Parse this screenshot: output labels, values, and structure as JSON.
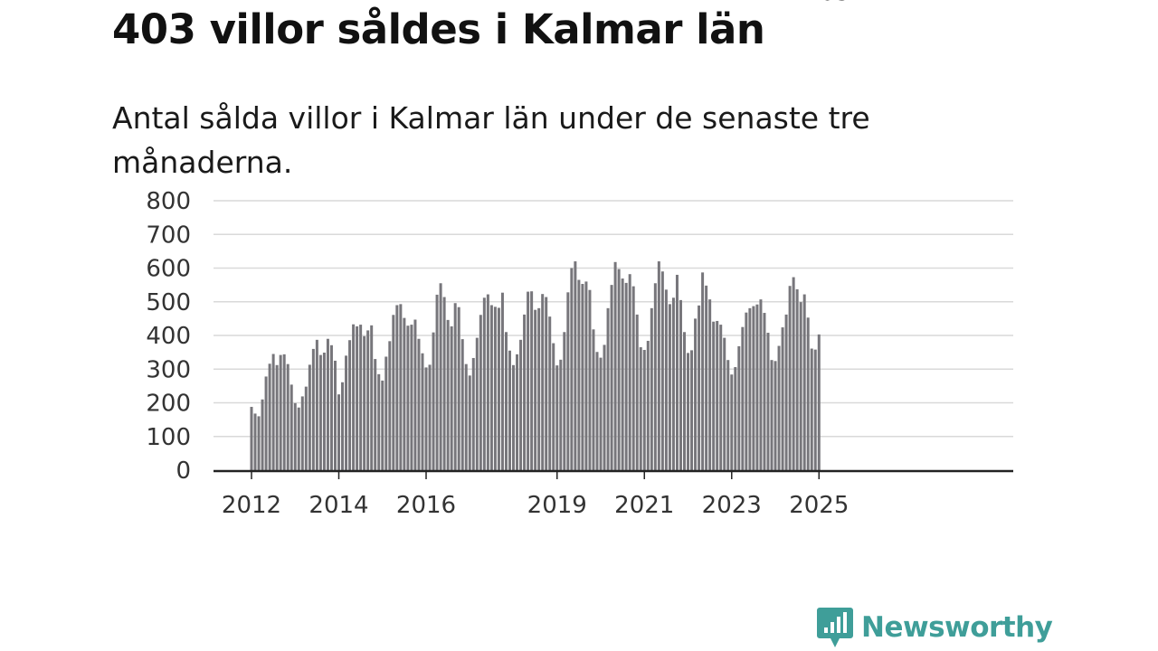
{
  "header": {
    "title": "403 villor såldes i Kalmar län",
    "subtitle": "Antal sålda villor i Kalmar län under de senaste tre månaderna."
  },
  "colors": {
    "bar": "#77767b",
    "highlight": "#1aa39a",
    "grid": "#d9d9d9",
    "axis": "#222222",
    "brand": "#3f9e99"
  },
  "chart_data": {
    "type": "bar",
    "title": "403 villor såldes i Kalmar län",
    "subtitle": "Antal sålda villor i Kalmar län under de senaste tre månaderna.",
    "xlabel": "",
    "ylabel": "",
    "ylim": [
      0,
      800
    ],
    "yticks": [
      "0",
      "100",
      "200",
      "300",
      "400",
      "500",
      "600",
      "700",
      "800"
    ],
    "xtick_labels": [
      "2012",
      "2014",
      "2016",
      "2019",
      "2021",
      "2023",
      "2025"
    ],
    "start": "2012-01",
    "grid": true,
    "annotation": {
      "label": "403",
      "period": "2025-03"
    },
    "values": [
      188,
      168,
      160,
      210,
      278,
      316,
      345,
      312,
      342,
      344,
      315,
      254,
      199,
      186,
      219,
      248,
      313,
      360,
      387,
      342,
      349,
      390,
      371,
      325,
      225,
      261,
      340,
      386,
      433,
      427,
      432,
      398,
      415,
      430,
      330,
      285,
      266,
      337,
      383,
      461,
      490,
      493,
      452,
      429,
      432,
      447,
      390,
      347,
      305,
      313,
      409,
      521,
      555,
      514,
      446,
      427,
      496,
      484,
      389,
      315,
      281,
      333,
      393,
      461,
      512,
      522,
      490,
      485,
      482,
      527,
      410,
      355,
      312,
      344,
      387,
      462,
      530,
      531,
      476,
      481,
      523,
      514,
      456,
      377,
      311,
      328,
      410,
      528,
      600,
      620,
      565,
      553,
      560,
      535,
      418,
      351,
      334,
      372,
      481,
      550,
      618,
      597,
      569,
      556,
      582,
      546,
      462,
      365,
      357,
      384,
      481,
      555,
      620,
      590,
      536,
      493,
      512,
      580,
      505,
      410,
      348,
      356,
      450,
      489,
      587,
      548,
      507,
      441,
      443,
      432,
      393,
      327,
      284,
      306,
      368,
      425,
      468,
      481,
      487,
      492,
      507,
      467,
      408,
      327,
      324,
      369,
      424,
      462,
      547,
      573,
      537,
      499,
      522,
      453,
      361,
      358,
      403
    ]
  },
  "footer": {
    "brand_name": "Newsworthy",
    "logo_icon": "newsworthy-chart-bubble-icon"
  }
}
